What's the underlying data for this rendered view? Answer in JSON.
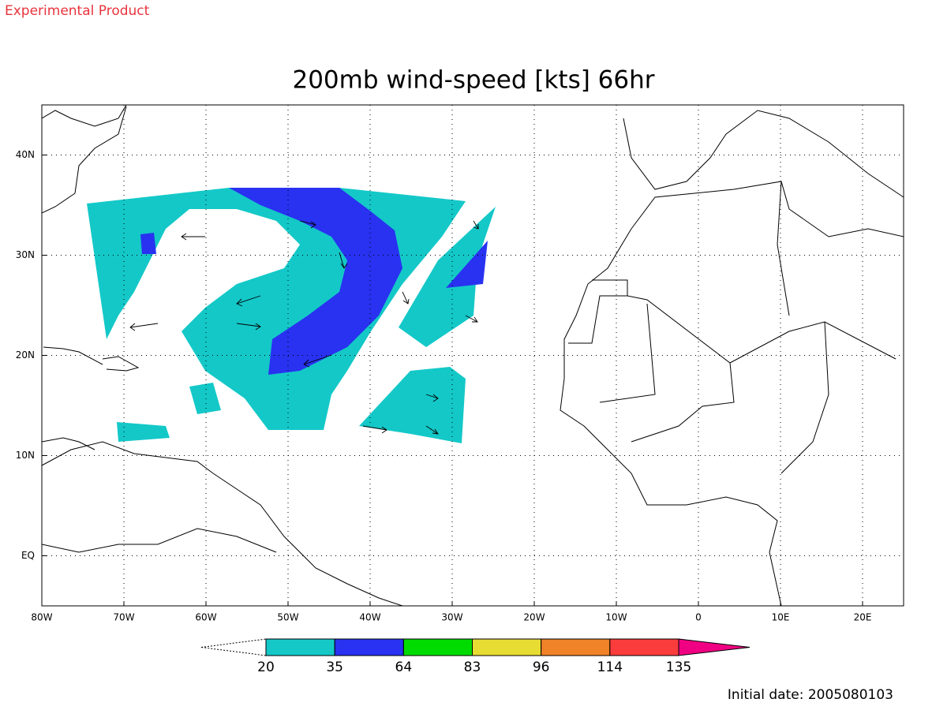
{
  "header": {
    "label": "Experimental Product"
  },
  "map": {
    "title": "200mb wind-speed [kts] 66hr",
    "lonlim": [
      -80,
      25
    ],
    "latlim": [
      -5,
      45
    ],
    "lonticks": [
      {
        "value": -80,
        "label": "80W"
      },
      {
        "value": -70,
        "label": "70W"
      },
      {
        "value": -60,
        "label": "60W"
      },
      {
        "value": -50,
        "label": "50W"
      },
      {
        "value": -40,
        "label": "40W"
      },
      {
        "value": -30,
        "label": "30W"
      },
      {
        "value": -20,
        "label": "20W"
      },
      {
        "value": -10,
        "label": "10W"
      },
      0,
      {
        "value": 10,
        "label": "10E"
      },
      {
        "value": 20,
        "label": "20E"
      }
    ],
    "latticks": [
      {
        "value": 40,
        "label": "40N"
      },
      {
        "value": 30,
        "label": "30N"
      },
      {
        "value": 20,
        "label": "20N"
      },
      {
        "value": 10,
        "label": "10N"
      },
      {
        "value": 0,
        "label": "EQ"
      }
    ],
    "grid": true
  },
  "colorbar": {
    "levels": [
      20,
      35,
      64,
      83,
      96,
      114,
      135
    ],
    "colors": [
      "#14c8c8",
      "#2832f0",
      "#00dc00",
      "#e6dc32",
      "#f08228",
      "#fa3c3c",
      "#f00082"
    ]
  },
  "footer": {
    "initial_date": "Initial date: 2005080103"
  }
}
